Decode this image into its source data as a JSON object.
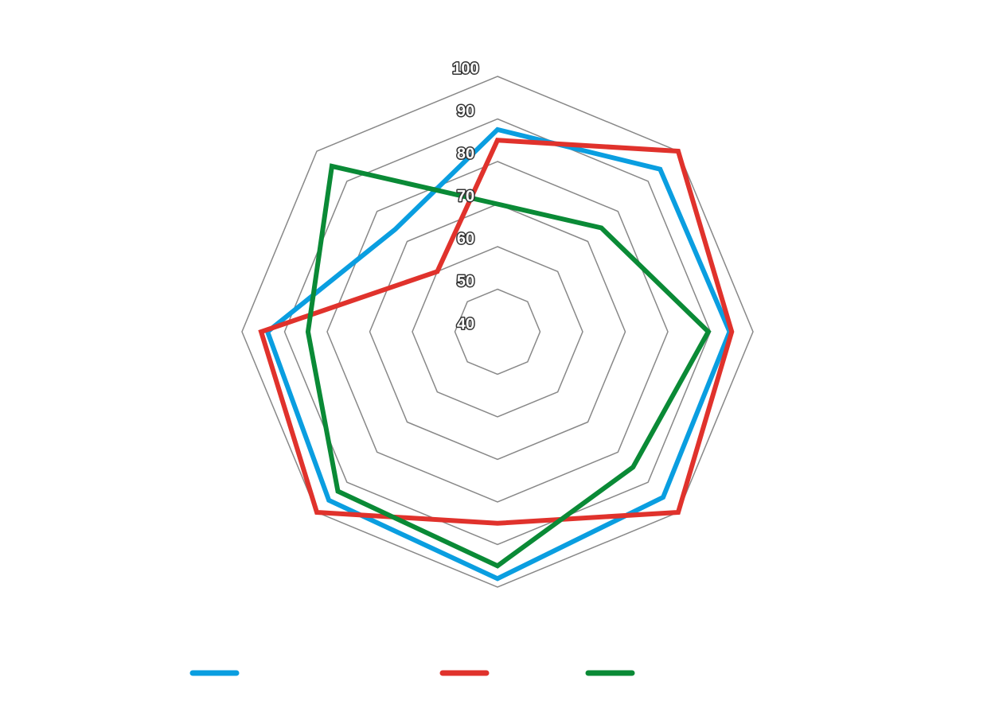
{
  "chart_data": {
    "type": "radar",
    "categories": [
      null,
      null,
      null,
      null,
      null,
      null,
      null,
      null
    ],
    "rlim": [
      40,
      100
    ],
    "rticks": [
      40,
      50,
      60,
      70,
      80,
      90,
      100
    ],
    "grid": true,
    "series": [
      {
        "color": "#0a9ee0",
        "values": [
          87.5,
          94,
          94.5,
          95,
          98,
          96,
          94,
          74
        ]
      },
      {
        "color": "#e0322c",
        "values": [
          85,
          100,
          95,
          100,
          85,
          100,
          95.5,
          60
        ]
      },
      {
        "color": "#0a8a36",
        "values": [
          70,
          74.5,
          89.5,
          85,
          95,
          93,
          84.5,
          95
        ]
      }
    ]
  }
}
